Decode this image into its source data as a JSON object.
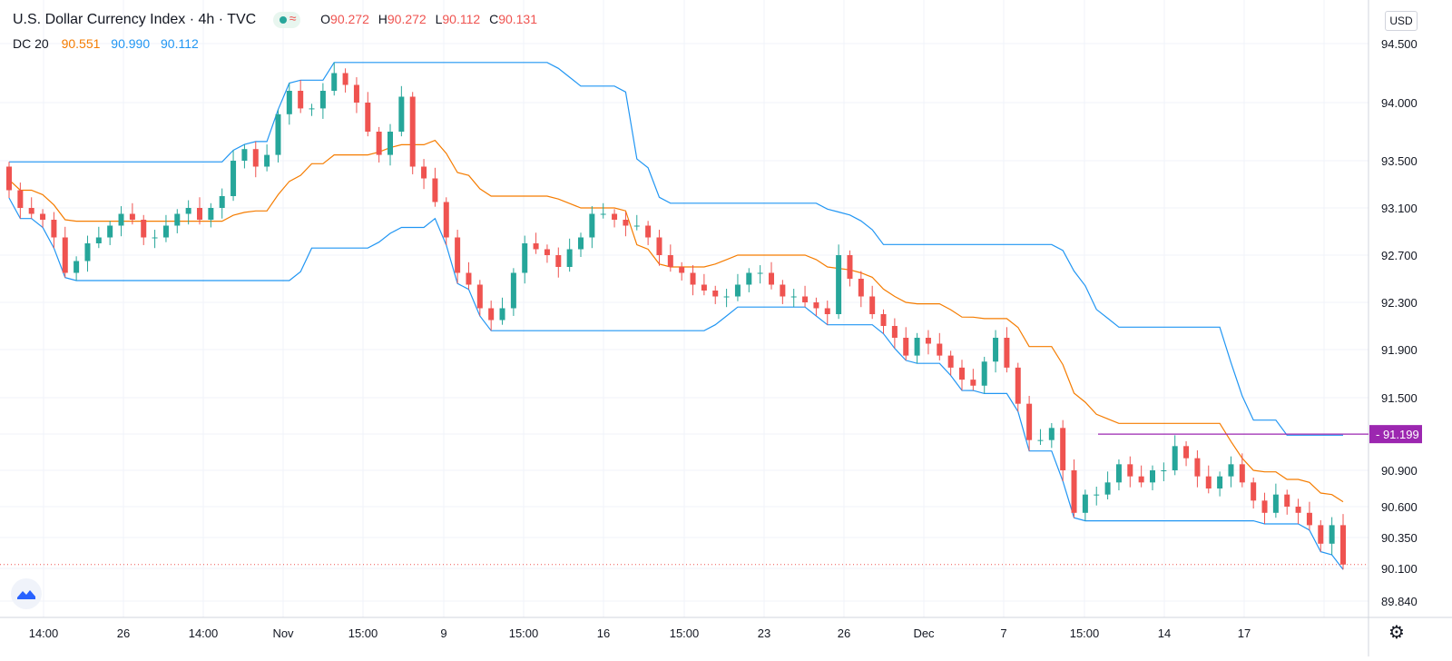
{
  "header": {
    "title": "U.S. Dollar Currency Index · 4h · TVC",
    "status_glyph": "≈",
    "ohlc": {
      "o_label": "O",
      "o_value": "90.272",
      "h_label": "H",
      "h_value": "90.272",
      "l_label": "L",
      "l_value": "90.112",
      "c_label": "C",
      "c_value": "90.131"
    }
  },
  "indicator": {
    "name": "DC 20",
    "middle": "90.551",
    "upper": "90.990",
    "lower": "90.112"
  },
  "currency_button": "USD",
  "colors": {
    "up": "#26a69a",
    "down": "#ef5350",
    "middle_line": "#f57c00",
    "band_line": "#2196f3",
    "level_line": "#9c27b0",
    "grid": "#f0f3fa"
  },
  "icons": {
    "logo": "tradingview-logo-icon",
    "settings": "gear-icon"
  },
  "chart_data": {
    "type": "candlestick",
    "title": "U.S. Dollar Currency Index · 4h · TVC",
    "y_ticks": [
      94.5,
      94.0,
      93.5,
      93.1,
      92.7,
      92.3,
      91.9,
      91.5,
      91.2,
      90.9,
      90.6,
      90.35,
      90.1,
      89.84
    ],
    "y_tick_labels": [
      "94.500",
      "94.000",
      "93.500",
      "93.100",
      "92.700",
      "92.300",
      "91.900",
      "91.500",
      "91.199",
      "90.900",
      "90.600",
      "90.350",
      "90.100",
      "89.840"
    ],
    "x_tick_labels": [
      "14:00",
      "26",
      "14:00",
      "Nov",
      "15:00",
      "9",
      "15:00",
      "16",
      "15:00",
      "23",
      "26",
      "Dec",
      "7",
      "15:00",
      "14",
      "17"
    ],
    "horizontal_level": {
      "value": 91.199,
      "label": "91.199"
    },
    "last_price": 90.131,
    "close": [
      93.25,
      93.1,
      93.05,
      93.0,
      92.85,
      92.55,
      92.65,
      92.8,
      92.85,
      92.95,
      93.05,
      93.0,
      92.85,
      92.85,
      92.95,
      93.05,
      93.1,
      93.0,
      93.1,
      93.2,
      93.5,
      93.6,
      93.45,
      93.55,
      93.9,
      94.1,
      93.95,
      93.95,
      94.1,
      94.25,
      94.15,
      94.0,
      93.75,
      93.55,
      93.75,
      94.05,
      93.45,
      93.35,
      93.15,
      92.85,
      92.55,
      92.45,
      92.25,
      92.15,
      92.25,
      92.55,
      92.8,
      92.75,
      92.7,
      92.6,
      92.75,
      92.85,
      93.05,
      93.05,
      93.0,
      92.95,
      92.95,
      92.85,
      92.7,
      92.6,
      92.55,
      92.45,
      92.4,
      92.35,
      92.35,
      92.45,
      92.55,
      92.55,
      92.45,
      92.35,
      92.35,
      92.3,
      92.25,
      92.2,
      92.7,
      92.5,
      92.35,
      92.2,
      92.1,
      92.0,
      91.85,
      92.0,
      91.95,
      91.85,
      91.75,
      91.65,
      91.6,
      91.8,
      92.0,
      91.75,
      91.45,
      91.15,
      91.15,
      91.25,
      90.9,
      90.55,
      90.7,
      90.7,
      90.8,
      90.95,
      90.85,
      90.8,
      90.9,
      90.9,
      91.1,
      91.0,
      90.85,
      90.75,
      90.85,
      90.95,
      90.8,
      90.65,
      90.55,
      90.7,
      90.6,
      90.55,
      90.45,
      90.3,
      90.45,
      90.131
    ],
    "donchian": {
      "period": 20,
      "upper_last": 90.99,
      "middle_last": 90.551,
      "lower_last": 90.112
    }
  }
}
